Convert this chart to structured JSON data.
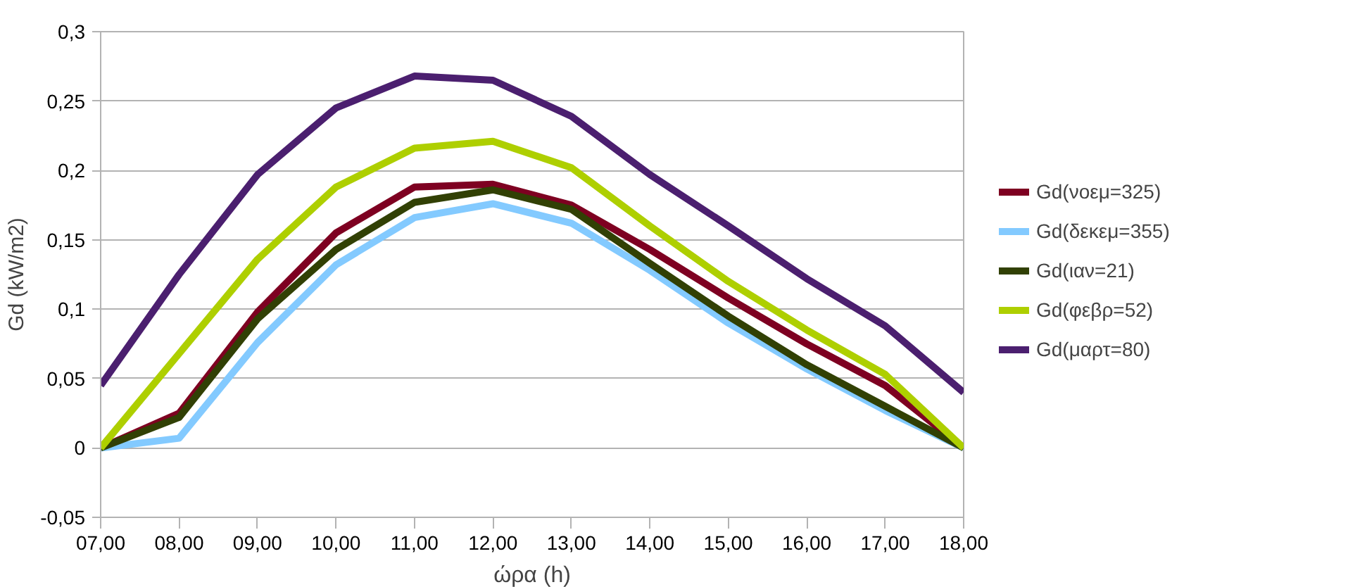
{
  "chart_data": {
    "type": "line",
    "xlabel": "ώρα (h)",
    "ylabel": "Gd (kW/m2)",
    "categories": [
      "07,00",
      "08,00",
      "09,00",
      "10,00",
      "11,00",
      "12,00",
      "13,00",
      "14,00",
      "15,00",
      "16,00",
      "17,00",
      "18,00"
    ],
    "series": [
      {
        "name": "Gd(νοεμ=325)",
        "color": "#7e0021",
        "values": [
          0,
          0.025,
          0.098,
          0.155,
          0.188,
          0.19,
          0.175,
          0.143,
          0.108,
          0.075,
          0.045,
          0
        ]
      },
      {
        "name": "Gd(δεκεμ=355)",
        "color": "#83caff",
        "values": [
          0,
          0.007,
          0.076,
          0.132,
          0.166,
          0.176,
          0.162,
          0.128,
          0.09,
          0.057,
          0.027,
          0
        ]
      },
      {
        "name": "Gd(ιαν=21)",
        "color": "#314004",
        "values": [
          0,
          0.022,
          0.093,
          0.143,
          0.177,
          0.186,
          0.172,
          0.133,
          0.095,
          0.06,
          0.03,
          0
        ]
      },
      {
        "name": "Gd(φεβρ=52)",
        "color": "#aecf00",
        "values": [
          0,
          0.068,
          0.136,
          0.188,
          0.216,
          0.221,
          0.202,
          0.16,
          0.12,
          0.085,
          0.053,
          0
        ]
      },
      {
        "name": "Gd(μαρτ=80)",
        "color": "#4b1f6f",
        "values": [
          0.045,
          0.125,
          0.197,
          0.245,
          0.268,
          0.265,
          0.239,
          0.197,
          0.16,
          0.122,
          0.088,
          0.04
        ]
      }
    ],
    "ylim": [
      -0.05,
      0.3
    ],
    "yticks": [
      {
        "value": -0.05,
        "label": "-0,05"
      },
      0,
      {
        "value": 0.05,
        "label": "0,05"
      },
      {
        "value": 0.1,
        "label": "0,1"
      },
      {
        "value": 0.15,
        "label": "0,15"
      },
      {
        "value": 0.2,
        "label": "0,2"
      },
      {
        "value": 0.25,
        "label": "0,25"
      },
      {
        "value": 0.3,
        "label": "0,3"
      }
    ],
    "grid": "y",
    "legend": "right",
    "marker": "none",
    "line_style": "solid"
  }
}
